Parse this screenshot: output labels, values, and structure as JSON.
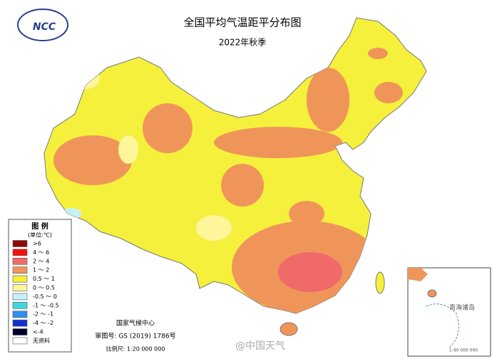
{
  "header": {
    "logo": "NCC",
    "title": "全国平均气温距平分布图",
    "subtitle": "2022年秋季"
  },
  "legend": {
    "title": "图 例",
    "unit": "(单位:℃)",
    "items": [
      {
        "label": ">6",
        "color": "#8b0a0a"
      },
      {
        "label": "4 ～ 6",
        "color": "#f01010"
      },
      {
        "label": "2 ～ 4",
        "color": "#f06a6a"
      },
      {
        "label": "1 ～ 2",
        "color": "#f0955a"
      },
      {
        "label": "0.5 ～ 1",
        "color": "#f5f03c"
      },
      {
        "label": "0 ～ 0.5",
        "color": "#fff59a"
      },
      {
        "label": "-0.5 ～ 0",
        "color": "#c8f0f8"
      },
      {
        "label": "-1 ～ -0.5",
        "color": "#40d8e0"
      },
      {
        "label": "-2 ～ -1",
        "color": "#3090f0"
      },
      {
        "label": "-4 ～ -2",
        "color": "#1030d0"
      },
      {
        "label": "<-4",
        "color": "#000030"
      },
      {
        "label": "无资料",
        "color": "#ffffff"
      }
    ]
  },
  "footer": {
    "agency": "国家气候中心",
    "approval": "审图号: GS (2019) 1786号",
    "scale": "比例尺: 1:20 000 000"
  },
  "inset": {
    "label": "南海诸岛",
    "scale": "1:40 000 000"
  },
  "watermark": "@中国天气"
}
